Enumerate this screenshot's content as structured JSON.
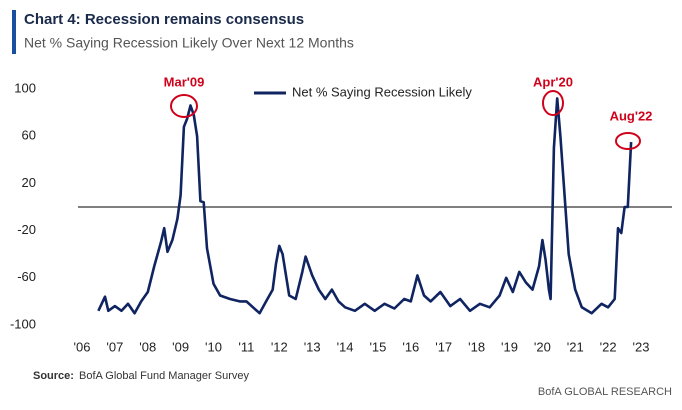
{
  "chart_data": {
    "type": "line",
    "title": "Chart 4: Recession remains consensus",
    "subtitle": "Net % Saying Recession Likely Over Next 12 Months",
    "series": [
      {
        "name": "Net % Saying Recession Likely",
        "color": "#0f2461",
        "x": [
          2006.5,
          2006.7,
          2006.8,
          2007.0,
          2007.2,
          2007.4,
          2007.6,
          2007.8,
          2008.0,
          2008.2,
          2008.4,
          2008.5,
          2008.6,
          2008.75,
          2008.9,
          2009.0,
          2009.1,
          2009.2,
          2009.3,
          2009.4,
          2009.5,
          2009.6,
          2009.7,
          2009.8,
          2010.0,
          2010.2,
          2010.5,
          2010.8,
          2011.0,
          2011.2,
          2011.4,
          2011.6,
          2011.8,
          2011.9,
          2012.0,
          2012.1,
          2012.3,
          2012.5,
          2012.7,
          2012.8,
          2013.0,
          2013.2,
          2013.4,
          2013.6,
          2013.8,
          2014.0,
          2014.3,
          2014.6,
          2014.9,
          2015.2,
          2015.5,
          2015.8,
          2016.0,
          2016.2,
          2016.4,
          2016.6,
          2016.9,
          2017.2,
          2017.5,
          2017.8,
          2018.1,
          2018.4,
          2018.7,
          2018.9,
          2019.1,
          2019.3,
          2019.5,
          2019.7,
          2019.9,
          2020.0,
          2020.1,
          2020.2,
          2020.25,
          2020.35,
          2020.45,
          2020.55,
          2020.7,
          2020.8,
          2021.0,
          2021.2,
          2021.5,
          2021.8,
          2022.0,
          2022.2,
          2022.3,
          2022.4,
          2022.5,
          2022.6,
          2022.7
        ],
        "values": [
          -88,
          -76,
          -88,
          -84,
          -88,
          -82,
          -90,
          -80,
          -72,
          -50,
          -30,
          -18,
          -38,
          -28,
          -10,
          10,
          68,
          75,
          86,
          78,
          60,
          5,
          4,
          -35,
          -65,
          -75,
          -78,
          -80,
          -80,
          -85,
          -90,
          -80,
          -70,
          -48,
          -33,
          -40,
          -75,
          -78,
          -55,
          -42,
          -58,
          -70,
          -78,
          -70,
          -80,
          -85,
          -88,
          -82,
          -88,
          -82,
          -86,
          -78,
          -80,
          -58,
          -75,
          -80,
          -72,
          -84,
          -78,
          -88,
          -82,
          -85,
          -75,
          -60,
          -72,
          -55,
          -64,
          -70,
          -50,
          -28,
          -45,
          -70,
          -78,
          50,
          92,
          60,
          0,
          -40,
          -70,
          -85,
          -90,
          -82,
          -85,
          -78,
          -18,
          -22,
          0,
          0,
          55
        ]
      }
    ],
    "xlim": [
      2006,
      2023
    ],
    "xticks": [
      {
        "value": 2006,
        "label": "'06"
      },
      {
        "value": 2007,
        "label": "'07"
      },
      {
        "value": 2008,
        "label": "'08"
      },
      {
        "value": 2009,
        "label": "'09"
      },
      {
        "value": 2010,
        "label": "'10"
      },
      {
        "value": 2011,
        "label": "'11"
      },
      {
        "value": 2012,
        "label": "'12"
      },
      {
        "value": 2013,
        "label": "'13"
      },
      {
        "value": 2014,
        "label": "'14"
      },
      {
        "value": 2015,
        "label": "'15"
      },
      {
        "value": 2016,
        "label": "'16"
      },
      {
        "value": 2017,
        "label": "'17"
      },
      {
        "value": 2018,
        "label": "'18"
      },
      {
        "value": 2019,
        "label": "'19"
      },
      {
        "value": 2020,
        "label": "'20"
      },
      {
        "value": 2021,
        "label": "'21"
      },
      {
        "value": 2022,
        "label": "'22"
      },
      {
        "value": 2023,
        "label": "'23"
      }
    ],
    "ylim": [
      -100,
      100
    ],
    "yticks": [
      100,
      60,
      20,
      -20,
      -60,
      -100
    ],
    "annotations": [
      "Mar'09",
      "Apr'20",
      "Aug'22"
    ],
    "source_label": "Source:",
    "source_text": "BofA Global Fund Manager Survey",
    "brand": "BofA GLOBAL RESEARCH"
  }
}
